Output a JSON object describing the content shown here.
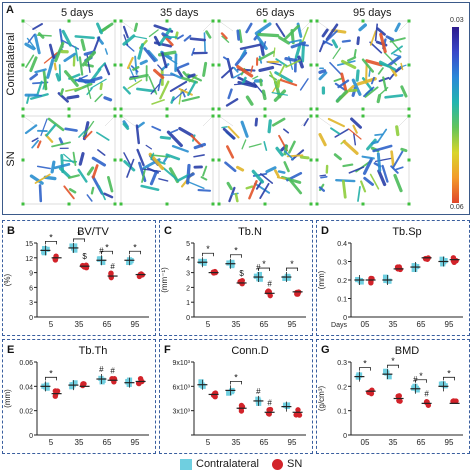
{
  "panel_a": {
    "label": "A",
    "columns": [
      "5 days",
      "35 days",
      "65 days",
      "95 days"
    ],
    "rows": [
      "Contralateral",
      "SN"
    ],
    "colorbar": {
      "max": "0.03",
      "min": "0.06"
    }
  },
  "colors": {
    "contralateral": "#6fcfe0",
    "sn": "#d2232a",
    "frame": "#3a5f9f"
  },
  "legend": {
    "contralateral": "Contralateral",
    "sn": "SN"
  },
  "chart_data": [
    {
      "id": "B",
      "type": "scatter",
      "title": "BV/TV",
      "ylabel": "(%)",
      "ylim": [
        0,
        15
      ],
      "yticks": [
        "0",
        "3",
        "6",
        "9",
        "12",
        "15"
      ],
      "categories": [
        "5",
        "35",
        "65",
        "95"
      ],
      "xlabel": "",
      "series": [
        {
          "name": "Contralateral",
          "values": [
            13.5,
            14.0,
            11.5,
            11.5
          ]
        },
        {
          "name": "SN",
          "values": [
            12.0,
            10.3,
            8.3,
            8.6
          ]
        }
      ],
      "annotations": [
        {
          "text": "*",
          "pair": 0
        },
        {
          "text": "*",
          "pair": 1
        },
        {
          "text": "$",
          "pos": "sn1"
        },
        {
          "text": "*",
          "pair": 2
        },
        {
          "text": "#",
          "pos": "c2"
        },
        {
          "text": "#",
          "pos": "sn2"
        },
        {
          "text": "*",
          "pair": 3
        }
      ]
    },
    {
      "id": "C",
      "type": "scatter",
      "title": "Tb.N",
      "ylabel": "(mm⁻¹)",
      "ylim": [
        0,
        5
      ],
      "yticks": [
        "0",
        "1",
        "2",
        "3",
        "4",
        "5"
      ],
      "categories": [
        "5",
        "35",
        "65",
        "95"
      ],
      "xlabel": "",
      "series": [
        {
          "name": "Contralateral",
          "values": [
            3.7,
            3.6,
            2.7,
            2.7
          ]
        },
        {
          "name": "SN",
          "values": [
            3.0,
            2.3,
            1.6,
            1.7
          ]
        }
      ],
      "annotations": [
        {
          "text": "*",
          "pair": 0
        },
        {
          "text": "*",
          "pair": 1
        },
        {
          "text": "$",
          "pos": "sn1"
        },
        {
          "text": "*",
          "pair": 2
        },
        {
          "text": "#",
          "pos": "c2"
        },
        {
          "text": "#",
          "pos": "sn2"
        },
        {
          "text": "*",
          "pair": 3
        }
      ]
    },
    {
      "id": "D",
      "type": "scatter",
      "title": "Tb.Sp",
      "ylabel": "(mm)",
      "ylim": [
        0,
        0.4
      ],
      "yticks": [
        "0",
        "0.1",
        "0.2",
        "0.3",
        "0.4"
      ],
      "categories": [
        "05",
        "35",
        "65",
        "95"
      ],
      "xlabel": "Days",
      "series": [
        {
          "name": "Contralateral",
          "values": [
            0.2,
            0.2,
            0.27,
            0.3
          ]
        },
        {
          "name": "SN",
          "values": [
            0.2,
            0.26,
            0.32,
            0.31
          ]
        }
      ],
      "annotations": []
    },
    {
      "id": "E",
      "type": "scatter",
      "title": "Tb.Th",
      "ylabel": "(mm)",
      "ylim": [
        0,
        0.06
      ],
      "yticks": [
        "0",
        "0.02",
        "0.04",
        "0.06"
      ],
      "categories": [
        "5",
        "35",
        "65",
        "95"
      ],
      "xlabel": "",
      "series": [
        {
          "name": "Contralateral",
          "values": [
            0.04,
            0.041,
            0.046,
            0.043
          ]
        },
        {
          "name": "SN",
          "values": [
            0.034,
            0.04,
            0.045,
            0.044
          ]
        }
      ],
      "annotations": [
        {
          "text": "*",
          "pair": 0
        },
        {
          "text": "#",
          "pos": "c2"
        },
        {
          "text": "#",
          "pos": "sn2"
        }
      ]
    },
    {
      "id": "F",
      "type": "scatter",
      "title": "Conn.D",
      "ylabel": "",
      "ylim": [
        0,
        9
      ],
      "yticks": [
        "",
        "3x10³",
        "6x10³",
        "9x10³"
      ],
      "categories": [
        "5",
        "35",
        "65",
        "95"
      ],
      "xlabel": "",
      "series": [
        {
          "name": "Contralateral",
          "values": [
            6.2,
            5.5,
            4.2,
            3.5
          ]
        },
        {
          "name": "SN",
          "values": [
            5.0,
            3.3,
            2.8,
            2.8
          ]
        }
      ],
      "annotations": [
        {
          "text": "*",
          "pair": 1
        },
        {
          "text": "#",
          "pos": "c2"
        },
        {
          "text": "#",
          "pos": "sn2"
        }
      ]
    },
    {
      "id": "G",
      "type": "scatter",
      "title": "BMD",
      "ylabel": "(g/cm³)",
      "ylim": [
        0,
        0.3
      ],
      "yticks": [
        "0",
        "0.1",
        "0.2",
        "0.3"
      ],
      "categories": [
        "05",
        "35",
        "65",
        "95"
      ],
      "xlabel": "",
      "series": [
        {
          "name": "Contralateral",
          "values": [
            0.24,
            0.25,
            0.19,
            0.2
          ]
        },
        {
          "name": "SN",
          "values": [
            0.18,
            0.15,
            0.13,
            0.13
          ]
        }
      ],
      "annotations": [
        {
          "text": "*",
          "pair": 0
        },
        {
          "text": "*",
          "pair": 1
        },
        {
          "text": "#",
          "pos": "c2"
        },
        {
          "text": "*",
          "pair": 2
        },
        {
          "text": "#",
          "pos": "sn2"
        },
        {
          "text": "*",
          "pair": 3
        }
      ]
    }
  ]
}
